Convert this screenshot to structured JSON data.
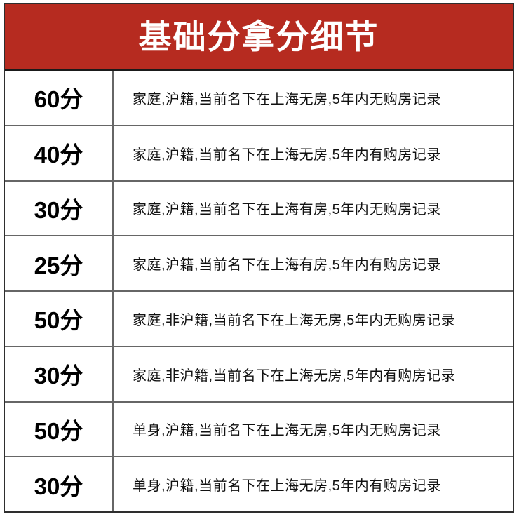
{
  "title": "基础分拿分细节",
  "colors": {
    "header_bg": "#b62b20",
    "header_text": "#ffffff",
    "grid_line": "#666666",
    "outer_border": "#2e2e2e"
  },
  "rows": [
    {
      "score": "60分",
      "desc": "家庭,沪籍,当前名下在上海无房,5年内无购房记录"
    },
    {
      "score": "40分",
      "desc": "家庭,沪籍,当前名下在上海无房,5年内有购房记录"
    },
    {
      "score": "30分",
      "desc": "家庭,沪籍,当前名下在上海有房,5年内无购房记录"
    },
    {
      "score": "25分",
      "desc": "家庭,沪籍,当前名下在上海有房,5年内有购房记录"
    },
    {
      "score": "50分",
      "desc": "家庭,非沪籍,当前名下在上海无房,5年内无购房记录"
    },
    {
      "score": "30分",
      "desc": "家庭,非沪籍,当前名下在上海无房,5年内有购房记录"
    },
    {
      "score": "50分",
      "desc": "单身,沪籍,当前名下在上海无房,5年内无购房记录"
    },
    {
      "score": "30分",
      "desc": "单身,沪籍,当前名下在上海无房,5年内有购房记录"
    }
  ]
}
